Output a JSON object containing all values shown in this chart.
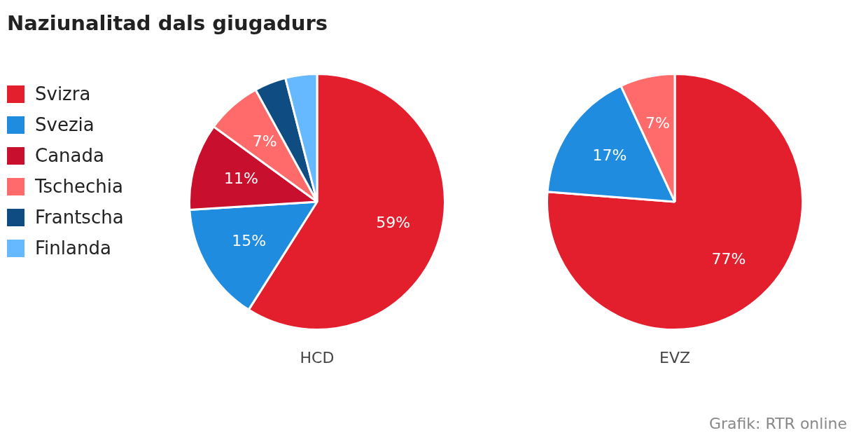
{
  "chart_data": {
    "type": "pie",
    "title": "Naziunalitad dals giugadurs",
    "categories": [
      "Svizra",
      "Svezia",
      "Canada",
      "Tschechia",
      "Frantscha",
      "Finlanda"
    ],
    "colors": [
      "#e31e2d",
      "#1f8ce0",
      "#c8102e",
      "#ff6b6b",
      "#0f4c81",
      "#66b8ff"
    ],
    "legend": "left",
    "annotations": [
      "Grafik: RTR online"
    ],
    "series": [
      {
        "name": "HCD",
        "values": [
          59,
          15,
          11,
          7,
          4,
          4
        ],
        "value_labels": [
          "59%",
          "15%",
          "11%",
          "7%",
          null,
          null
        ]
      },
      {
        "name": "EVZ",
        "values": [
          77,
          17,
          null,
          7,
          null,
          null
        ],
        "value_labels": [
          "77%",
          "17%",
          null,
          "7%",
          null,
          null
        ]
      }
    ]
  }
}
